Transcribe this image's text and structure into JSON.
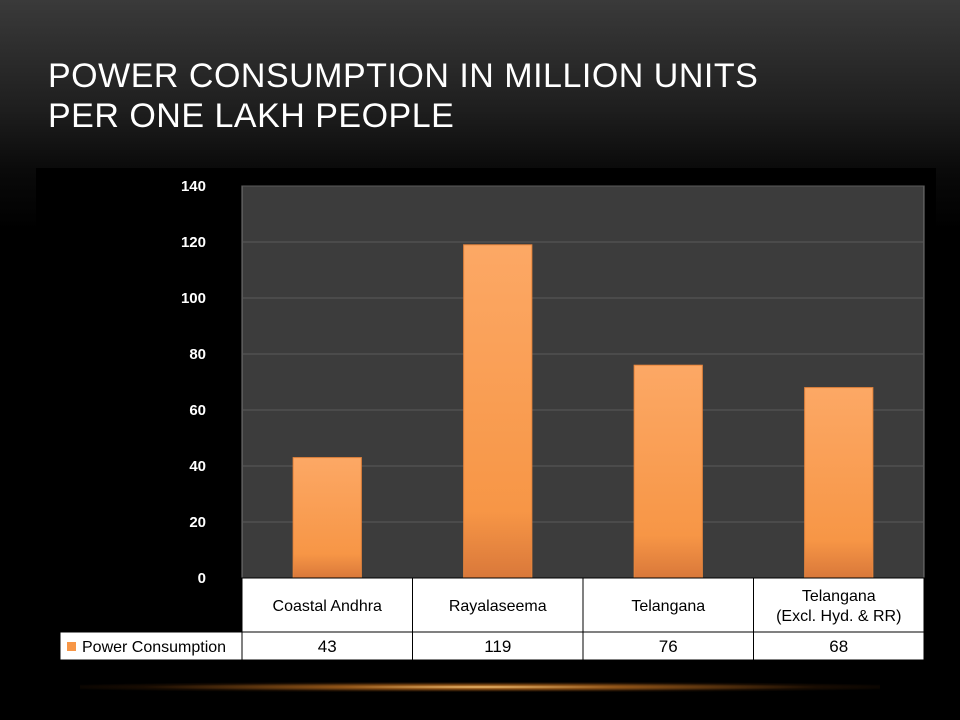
{
  "title": {
    "line1": "POWER CONSUMPTION IN MILLION UNITS",
    "line2": "PER ONE LAKH PEOPLE"
  },
  "chart_data": {
    "type": "bar",
    "title": "POWER CONSUMPTION IN MILLION UNITS PER ONE LAKH PEOPLE",
    "categories": [
      [
        "Coastal Andhra"
      ],
      [
        "Rayalaseema"
      ],
      [
        "Telangana"
      ],
      [
        "Telangana",
        "(Excl. Hyd. & RR)"
      ]
    ],
    "series": [
      {
        "name": "Power Consumption",
        "values": [
          43,
          119,
          76,
          68
        ],
        "color": "#f79646"
      }
    ],
    "ylim": [
      0,
      140
    ],
    "yticks": [
      0,
      20,
      40,
      60,
      80,
      100,
      120,
      140
    ],
    "grid": true,
    "legend": "data-table",
    "colors": {
      "background": "#000000",
      "plot_area": "#3c3c3c",
      "grid": "#5a5a5a",
      "table_bg": "#ffffff",
      "text": "#000000",
      "tick_text": "#ffffff"
    }
  }
}
